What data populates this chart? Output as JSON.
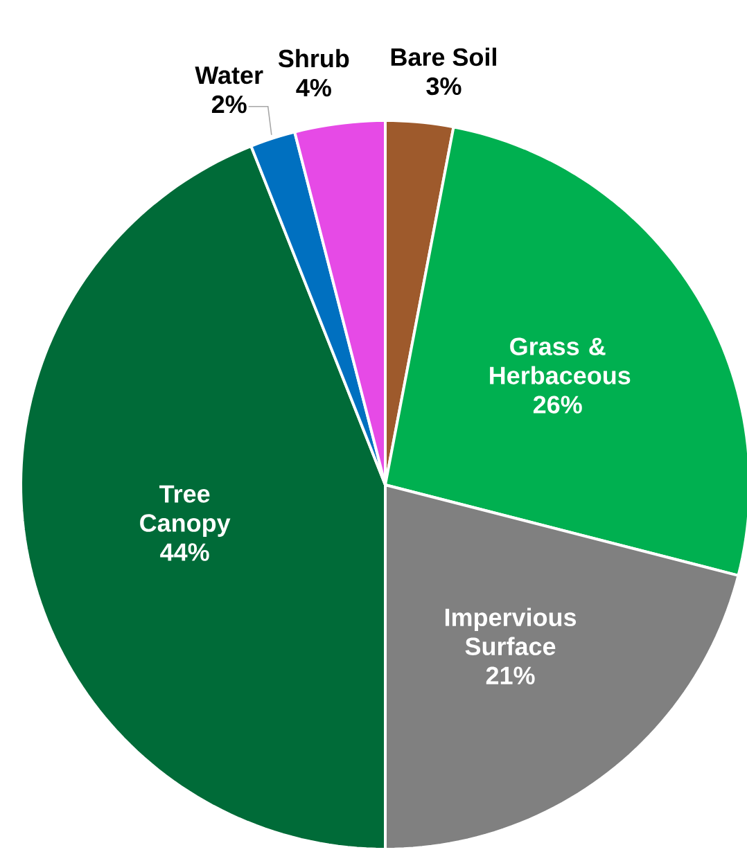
{
  "chart_data": {
    "type": "pie",
    "categories": [
      "Bare Soil",
      "Grass & Herbaceous",
      "Impervious Surface",
      "Tree Canopy",
      "Water",
      "Shrub"
    ],
    "values": [
      3,
      26,
      21,
      44,
      2,
      4
    ],
    "colors": [
      "#9e5a2c",
      "#00b050",
      "#808080",
      "#006b38",
      "#0070c0",
      "#e64ae6"
    ],
    "value_labels": [
      "3%",
      "26%",
      "21%",
      "44%",
      "2%",
      "4%"
    ]
  }
}
